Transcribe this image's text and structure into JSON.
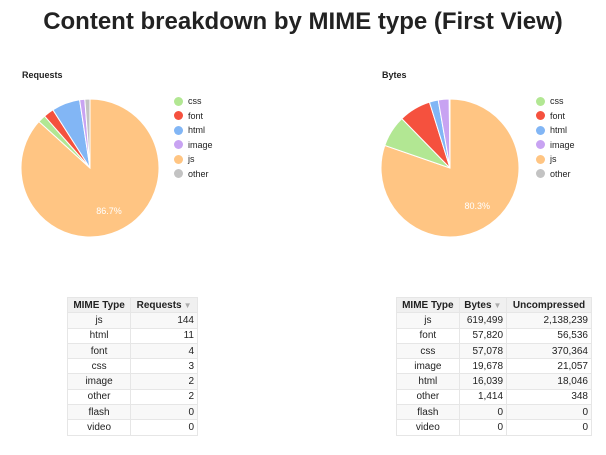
{
  "title": "Content breakdown by MIME type (First View)",
  "colors": {
    "css": "#b2e793",
    "font": "#f5513e",
    "html": "#82b6f5",
    "image": "#c8a3f2",
    "js": "#ffc583",
    "other": "#c3c3c3"
  },
  "chart_data": [
    {
      "type": "pie",
      "title": "Requests",
      "slices": [
        {
          "label": "js",
          "value": 144,
          "color": "#ffc583"
        },
        {
          "label": "css",
          "value": 3,
          "color": "#b2e793"
        },
        {
          "label": "font",
          "value": 4,
          "color": "#f5513e"
        },
        {
          "label": "html",
          "value": 11,
          "color": "#82b6f5"
        },
        {
          "label": "image",
          "value": 2,
          "color": "#c8a3f2"
        },
        {
          "label": "other",
          "value": 2,
          "color": "#c3c3c3"
        }
      ],
      "data_label": "86.7%",
      "legend": [
        "css",
        "font",
        "html",
        "image",
        "js",
        "other"
      ],
      "legend_position": "right"
    },
    {
      "type": "pie",
      "title": "Bytes",
      "slices": [
        {
          "label": "js",
          "value": 619499,
          "color": "#ffc583"
        },
        {
          "label": "css",
          "value": 57078,
          "color": "#b2e793"
        },
        {
          "label": "font",
          "value": 57820,
          "color": "#f5513e"
        },
        {
          "label": "html",
          "value": 16039,
          "color": "#82b6f5"
        },
        {
          "label": "image",
          "value": 19678,
          "color": "#c8a3f2"
        },
        {
          "label": "other",
          "value": 1414,
          "color": "#c3c3c3"
        }
      ],
      "data_label": "80.3%",
      "legend": [
        "css",
        "font",
        "html",
        "image",
        "js",
        "other"
      ],
      "legend_position": "right"
    }
  ],
  "requests_table": {
    "headers": [
      "MIME Type",
      "Requests"
    ],
    "sort_icon": "sort-desc-icon",
    "rows": [
      [
        "js",
        "144"
      ],
      [
        "html",
        "11"
      ],
      [
        "font",
        "4"
      ],
      [
        "css",
        "3"
      ],
      [
        "image",
        "2"
      ],
      [
        "other",
        "2"
      ],
      [
        "flash",
        "0"
      ],
      [
        "video",
        "0"
      ]
    ]
  },
  "bytes_table": {
    "headers": [
      "MIME Type",
      "Bytes",
      "Uncompressed"
    ],
    "sort_icon": "sort-desc-icon",
    "rows": [
      [
        "js",
        "619,499",
        "2,138,239"
      ],
      [
        "font",
        "57,820",
        "56,536"
      ],
      [
        "css",
        "57,078",
        "370,364"
      ],
      [
        "image",
        "19,678",
        "21,057"
      ],
      [
        "html",
        "16,039",
        "18,046"
      ],
      [
        "other",
        "1,414",
        "348"
      ],
      [
        "flash",
        "0",
        "0"
      ],
      [
        "video",
        "0",
        "0"
      ]
    ]
  }
}
